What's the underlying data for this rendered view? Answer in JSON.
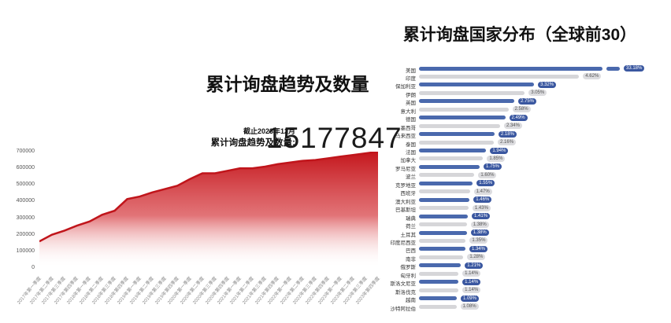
{
  "left_panel": {
    "title": "累计询盘趋势及数量",
    "asof": "截止2023年12月",
    "total_label": "累计询盘趋势及数量:",
    "total_value": "15177847"
  },
  "right_panel": {
    "title": "累计询盘国家分布（全球前30）"
  },
  "colors": {
    "area_top": "#c4161c",
    "area_bottom": "#ffffff",
    "area_line": "#c0151b",
    "bar_blue": "#4a69ad",
    "pill_blue": "#3a57a0",
    "pill_blue_text": "#ffffff",
    "bar_gray": "#d6d6d9",
    "pill_gray": "#dcdcdf",
    "pill_gray_text": "#555555",
    "axis_text": "#555555",
    "xlabel_text": "#8a8a8a"
  },
  "chart_data": [
    {
      "type": "area",
      "title": "累计询盘趋势及数量",
      "annotation_asof": "截止2023年12月",
      "annotation_total": "累计询盘趋势及数量: 15177847",
      "x": [
        "2017年第一季度",
        "2017年第二季度",
        "2017年第三季度",
        "2017年第四季度",
        "2018年第一季度",
        "2018年第二季度",
        "2018年第三季度",
        "2018年第四季度",
        "2019年第一季度",
        "2019年第二季度",
        "2019年第三季度",
        "2019年第四季度",
        "2020年第一季度",
        "2020年第二季度",
        "2020年第三季度",
        "2020年第四季度",
        "2021年第一季度",
        "2021年第二季度",
        "2021年第三季度",
        "2021年第四季度",
        "2022年第一季度",
        "2022年第二季度",
        "2022年第三季度",
        "2022年第四季度",
        "2023年第一季度",
        "2023年第二季度",
        "2023年第三季度",
        "2023年第四季度"
      ],
      "values": [
        160000,
        200000,
        225000,
        255000,
        280000,
        320000,
        345000,
        415000,
        430000,
        455000,
        475000,
        495000,
        535000,
        570000,
        570000,
        585000,
        600000,
        600000,
        610000,
        625000,
        635000,
        645000,
        650000,
        660000,
        670000,
        680000,
        690000,
        700000
      ],
      "ylim": [
        0,
        700000
      ],
      "yticks": [
        0,
        100000,
        200000,
        300000,
        400000,
        500000,
        600000,
        700000
      ],
      "grid": false,
      "legend": false,
      "xlabel": "",
      "ylabel": ""
    },
    {
      "type": "bar",
      "orientation": "horizontal",
      "title": "累计询盘国家分布（全球前30）",
      "unit": "%",
      "broken_axis_index": 0,
      "categories": [
        "美国",
        "印度",
        "保加利亚",
        "伊朗",
        "英国",
        "意大利",
        "德国",
        "墨西哥",
        "马来西亚",
        "泰国",
        "法国",
        "加拿大",
        "罗马尼亚",
        "波兰",
        "克罗地亚",
        "西班牙",
        "澳大利亚",
        "巴基斯坦",
        "瑞典",
        "荷兰",
        "土耳其",
        "印度尼西亚",
        "巴西",
        "南非",
        "俄罗斯",
        "匈牙利",
        "斯洛文尼亚",
        "斯洛伐克",
        "越南",
        "沙特阿拉伯"
      ],
      "values": [
        33.18,
        4.62,
        3.32,
        3.05,
        2.75,
        2.58,
        2.49,
        2.34,
        2.18,
        2.16,
        1.94,
        1.85,
        1.75,
        1.6,
        1.55,
        1.47,
        1.46,
        1.43,
        1.41,
        1.38,
        1.38,
        1.35,
        1.34,
        1.28,
        1.21,
        1.14,
        1.14,
        1.14,
        1.09,
        1.08
      ],
      "value_labels": [
        "33.18%",
        "4.62%",
        "3.32%",
        "3.05%",
        "2.75%",
        "2.58%",
        "2.49%",
        "2.34%",
        "2.18%",
        "2.16%",
        "1.94%",
        "1.85%",
        "1.75%",
        "1.60%",
        "1.55%",
        "1.47%",
        "1.46%",
        "1.43%",
        "1.41%",
        "1.38%",
        "1.38%",
        "1.35%",
        "1.34%",
        "1.28%",
        "1.21%",
        "1.14%",
        "1.14%",
        "1.14%",
        "1.09%",
        "1.08%"
      ],
      "bar_style": "alternating-blue-gray",
      "legend": false,
      "grid": false
    }
  ]
}
